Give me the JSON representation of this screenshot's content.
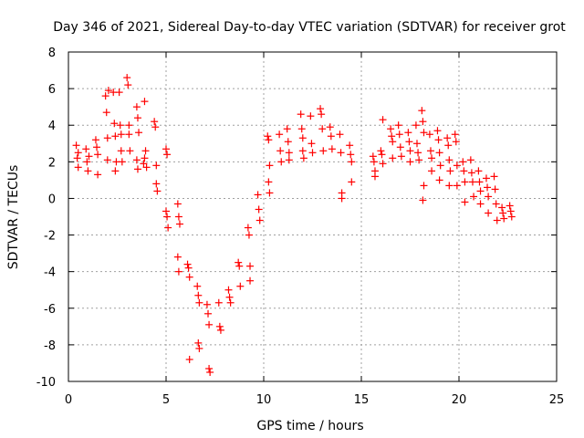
{
  "chart_data": {
    "type": "scatter",
    "title": "Day 346 of 2021, Sidereal Day-to-day VTEC variation (SDTVAR) for receiver grot",
    "xlabel": "GPS time / hours",
    "ylabel": "SDTVAR / TECUs",
    "xlim": [
      0,
      25
    ],
    "ylim": [
      -10,
      8
    ],
    "xticks": [
      0,
      5,
      10,
      15,
      20,
      25
    ],
    "yticks": [
      -10,
      -8,
      -6,
      -4,
      -2,
      0,
      2,
      4,
      6,
      8
    ],
    "grid": true,
    "marker": "+",
    "color": "#ff0000",
    "series": [
      {
        "name": "SDTVAR",
        "points": [
          [
            0.4,
            2.9
          ],
          [
            0.45,
            2.2
          ],
          [
            0.5,
            1.7
          ],
          [
            0.5,
            2.5
          ],
          [
            0.9,
            2.7
          ],
          [
            0.95,
            2.0
          ],
          [
            1.0,
            1.5
          ],
          [
            1.05,
            2.3
          ],
          [
            1.4,
            3.2
          ],
          [
            1.45,
            2.8
          ],
          [
            1.5,
            2.4
          ],
          [
            1.5,
            1.3
          ],
          [
            1.9,
            5.6
          ],
          [
            1.95,
            4.7
          ],
          [
            2.0,
            3.3
          ],
          [
            2.0,
            2.1
          ],
          [
            2.05,
            5.9
          ],
          [
            2.3,
            5.8
          ],
          [
            2.35,
            4.1
          ],
          [
            2.4,
            3.4
          ],
          [
            2.45,
            2.0
          ],
          [
            2.4,
            1.5
          ],
          [
            2.6,
            5.8
          ],
          [
            2.65,
            4.0
          ],
          [
            2.7,
            3.5
          ],
          [
            2.7,
            2.6
          ],
          [
            2.75,
            2.0
          ],
          [
            3.0,
            6.6
          ],
          [
            3.05,
            6.2
          ],
          [
            3.1,
            4.0
          ],
          [
            3.1,
            3.5
          ],
          [
            3.15,
            2.6
          ],
          [
            3.5,
            5.0
          ],
          [
            3.55,
            4.4
          ],
          [
            3.6,
            3.6
          ],
          [
            3.5,
            2.1
          ],
          [
            3.55,
            1.6
          ],
          [
            3.9,
            5.3
          ],
          [
            3.9,
            2.2
          ],
          [
            3.95,
            2.6
          ],
          [
            4.0,
            1.7
          ],
          [
            3.85,
            1.9
          ],
          [
            4.4,
            4.2
          ],
          [
            4.45,
            3.9
          ],
          [
            4.5,
            1.8
          ],
          [
            4.5,
            0.8
          ],
          [
            4.55,
            0.4
          ],
          [
            5.0,
            2.7
          ],
          [
            5.05,
            2.4
          ],
          [
            5.0,
            -0.7
          ],
          [
            5.05,
            -1.0
          ],
          [
            5.1,
            -1.6
          ],
          [
            5.6,
            -0.3
          ],
          [
            5.65,
            -1.0
          ],
          [
            5.7,
            -1.4
          ],
          [
            5.6,
            -3.2
          ],
          [
            5.65,
            -4.0
          ],
          [
            6.1,
            -3.6
          ],
          [
            6.15,
            -3.8
          ],
          [
            6.2,
            -4.3
          ],
          [
            6.2,
            -8.8
          ],
          [
            6.6,
            -4.8
          ],
          [
            6.65,
            -5.3
          ],
          [
            6.7,
            -5.7
          ],
          [
            6.65,
            -7.9
          ],
          [
            6.7,
            -8.2
          ],
          [
            7.1,
            -5.8
          ],
          [
            7.15,
            -6.3
          ],
          [
            7.2,
            -6.9
          ],
          [
            7.2,
            -9.3
          ],
          [
            7.25,
            -9.5
          ],
          [
            7.7,
            -5.7
          ],
          [
            7.75,
            -7.0
          ],
          [
            7.8,
            -7.2
          ],
          [
            8.2,
            -5.0
          ],
          [
            8.25,
            -5.4
          ],
          [
            8.3,
            -5.7
          ],
          [
            8.7,
            -3.5
          ],
          [
            8.75,
            -3.7
          ],
          [
            8.8,
            -4.8
          ],
          [
            9.2,
            -1.6
          ],
          [
            9.25,
            -2.0
          ],
          [
            9.3,
            -3.7
          ],
          [
            9.3,
            -4.5
          ],
          [
            9.7,
            0.2
          ],
          [
            9.75,
            -0.6
          ],
          [
            9.8,
            -1.2
          ],
          [
            10.2,
            3.4
          ],
          [
            10.25,
            3.2
          ],
          [
            10.3,
            1.8
          ],
          [
            10.25,
            0.9
          ],
          [
            10.3,
            0.3
          ],
          [
            10.8,
            3.5
          ],
          [
            10.85,
            2.6
          ],
          [
            10.9,
            2.0
          ],
          [
            11.2,
            3.8
          ],
          [
            11.25,
            3.1
          ],
          [
            11.3,
            2.5
          ],
          [
            11.3,
            2.1
          ],
          [
            11.9,
            4.6
          ],
          [
            11.95,
            3.8
          ],
          [
            12.0,
            3.3
          ],
          [
            12.0,
            2.6
          ],
          [
            12.05,
            2.2
          ],
          [
            12.4,
            4.5
          ],
          [
            12.45,
            3.0
          ],
          [
            12.5,
            2.5
          ],
          [
            12.9,
            4.9
          ],
          [
            12.95,
            4.6
          ],
          [
            13.0,
            3.8
          ],
          [
            13.05,
            2.6
          ],
          [
            13.4,
            3.9
          ],
          [
            13.45,
            3.4
          ],
          [
            13.5,
            2.7
          ],
          [
            13.9,
            3.5
          ],
          [
            13.95,
            2.5
          ],
          [
            14.0,
            0.3
          ],
          [
            14.0,
            0.0
          ],
          [
            14.4,
            2.9
          ],
          [
            14.45,
            2.4
          ],
          [
            14.5,
            2.0
          ],
          [
            14.5,
            0.9
          ],
          [
            15.6,
            2.3
          ],
          [
            15.65,
            2.0
          ],
          [
            15.7,
            1.5
          ],
          [
            15.7,
            1.2
          ],
          [
            16.0,
            2.6
          ],
          [
            16.05,
            2.4
          ],
          [
            16.1,
            4.3
          ],
          [
            16.1,
            1.9
          ],
          [
            16.5,
            3.8
          ],
          [
            16.55,
            3.4
          ],
          [
            16.6,
            3.1
          ],
          [
            16.6,
            2.2
          ],
          [
            16.9,
            4.0
          ],
          [
            16.95,
            3.5
          ],
          [
            17.0,
            2.8
          ],
          [
            17.05,
            2.3
          ],
          [
            17.4,
            3.6
          ],
          [
            17.45,
            3.1
          ],
          [
            17.5,
            2.6
          ],
          [
            17.5,
            2.0
          ],
          [
            17.8,
            4.0
          ],
          [
            17.85,
            3.0
          ],
          [
            17.9,
            2.5
          ],
          [
            17.95,
            2.1
          ],
          [
            18.1,
            4.8
          ],
          [
            18.15,
            4.2
          ],
          [
            18.2,
            3.6
          ],
          [
            18.2,
            0.7
          ],
          [
            18.15,
            -0.1
          ],
          [
            18.5,
            3.5
          ],
          [
            18.55,
            2.6
          ],
          [
            18.6,
            2.2
          ],
          [
            18.6,
            1.5
          ],
          [
            18.9,
            3.7
          ],
          [
            18.95,
            3.2
          ],
          [
            19.0,
            2.5
          ],
          [
            19.05,
            1.8
          ],
          [
            19.0,
            1.0
          ],
          [
            19.4,
            3.3
          ],
          [
            19.45,
            2.9
          ],
          [
            19.5,
            2.1
          ],
          [
            19.55,
            1.5
          ],
          [
            19.5,
            0.7
          ],
          [
            19.8,
            3.5
          ],
          [
            19.85,
            3.1
          ],
          [
            19.9,
            1.8
          ],
          [
            19.9,
            0.7
          ],
          [
            20.2,
            2.0
          ],
          [
            20.25,
            1.5
          ],
          [
            20.3,
            0.9
          ],
          [
            20.3,
            -0.2
          ],
          [
            20.6,
            2.1
          ],
          [
            20.65,
            1.4
          ],
          [
            20.7,
            0.9
          ],
          [
            20.75,
            0.1
          ],
          [
            21.0,
            1.5
          ],
          [
            21.05,
            0.9
          ],
          [
            21.1,
            0.4
          ],
          [
            21.1,
            -0.3
          ],
          [
            21.4,
            1.1
          ],
          [
            21.45,
            0.6
          ],
          [
            21.5,
            0.1
          ],
          [
            21.5,
            -0.8
          ],
          [
            21.8,
            1.2
          ],
          [
            21.85,
            0.5
          ],
          [
            21.9,
            -0.3
          ],
          [
            21.95,
            -1.2
          ],
          [
            22.2,
            -0.5
          ],
          [
            22.25,
            -0.8
          ],
          [
            22.3,
            -1.1
          ],
          [
            22.6,
            -0.4
          ],
          [
            22.65,
            -0.7
          ],
          [
            22.7,
            -1.0
          ]
        ]
      }
    ]
  }
}
